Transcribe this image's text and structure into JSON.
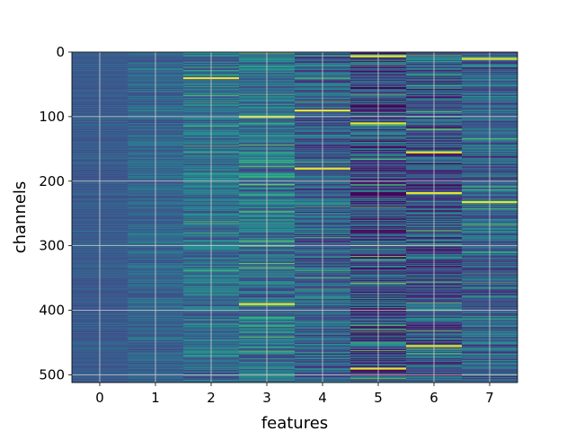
{
  "chart_data": {
    "type": "heatmap",
    "xlabel": "features",
    "ylabel": "channels",
    "x_categories": [
      "0",
      "1",
      "2",
      "3",
      "4",
      "5",
      "6",
      "7"
    ],
    "y_ticks": [
      0,
      100,
      200,
      300,
      400,
      500
    ],
    "y_range": [
      512,
      0
    ],
    "rows": 512,
    "colormap": "viridis",
    "grid": true,
    "legend": "none",
    "column_profiles": [
      {
        "feature": "0",
        "mean": 0.28,
        "spread": 0.05,
        "bright_rows": []
      },
      {
        "feature": "1",
        "mean": 0.32,
        "spread": 0.1,
        "bright_rows": []
      },
      {
        "feature": "2",
        "mean": 0.35,
        "spread": 0.18,
        "bright_rows": [
          40
        ]
      },
      {
        "feature": "3",
        "mean": 0.38,
        "spread": 0.22,
        "bright_rows": [
          100,
          390
        ]
      },
      {
        "feature": "4",
        "mean": 0.3,
        "spread": 0.22,
        "bright_rows": [
          90,
          180
        ]
      },
      {
        "feature": "5",
        "mean": 0.22,
        "spread": 0.3,
        "bright_rows": [
          6,
          110,
          490
        ]
      },
      {
        "feature": "6",
        "mean": 0.26,
        "spread": 0.28,
        "bright_rows": [
          155,
          218,
          455
        ]
      },
      {
        "feature": "7",
        "mean": 0.3,
        "spread": 0.22,
        "bright_rows": [
          10,
          232
        ]
      }
    ]
  }
}
